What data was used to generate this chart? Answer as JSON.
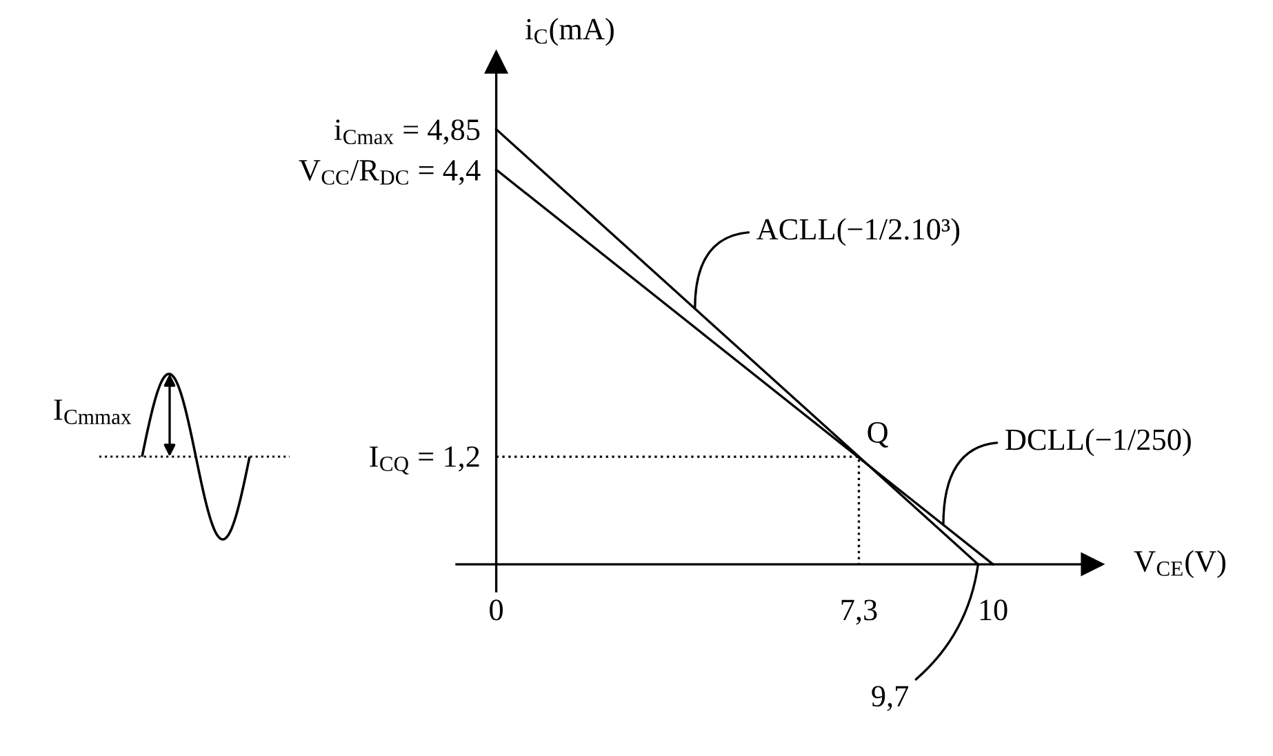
{
  "chart_data": {
    "type": "line",
    "xlabel": "V$_{CE}$(V)",
    "ylabel": "i$_{C}$(mA)",
    "series": [
      {
        "x": [
          0,
          9.7
        ],
        "values": [
          4.85,
          0
        ],
        "color": "#000000",
        "line_style": "solid"
      },
      {
        "x": [
          0,
          10
        ],
        "values": [
          4.4,
          0
        ],
        "color": "#000000",
        "line_style": "solid"
      },
      {
        "x": [
          0,
          7.3,
          7.3
        ],
        "values": [
          1.2,
          1.2,
          0
        ],
        "color": "#000000",
        "line_style": "dotted"
      }
    ],
    "xlim": [
      -0.8,
      12
    ],
    "ylim": [
      -0.3,
      5.6
    ],
    "xticks": [
      0,
      {
        "value": 7.3,
        "label": "7,3"
      },
      10
    ],
    "yticks": [
      {
        "value": 1.2,
        "label": "I$_{CQ}$ = 1,2"
      },
      {
        "value": 4.4,
        "label": "V$_{CC}$/R$_{DC}$ = 4,4"
      },
      {
        "value": 4.85,
        "label": "i$_{Cmax}$ = 4,85"
      }
    ],
    "annotations": [
      {
        "text": "ACLL(−1/2.10³)",
        "x": 4.0,
        "y": 2.85
      },
      {
        "text": "DCLL(−1/250)",
        "x": 9.0,
        "y": 0.44
      },
      {
        "text": "Q",
        "x": 7.3,
        "y": 1.2
      },
      {
        "text": "9,7",
        "x": 9.7,
        "y": 0
      },
      "I$_{Cmmax}$"
    ]
  }
}
